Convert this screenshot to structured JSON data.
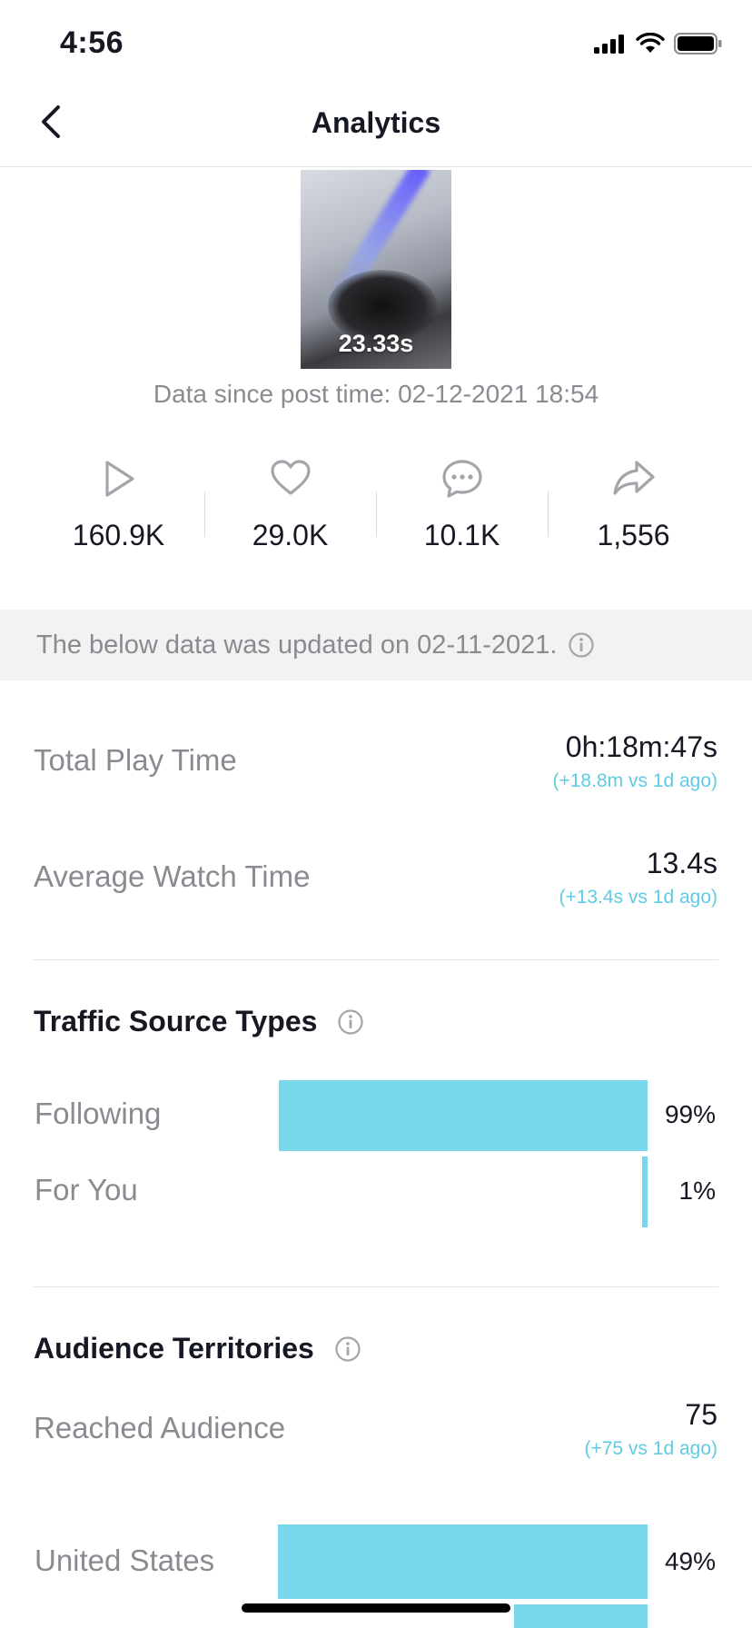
{
  "status_bar": {
    "time": "4:56"
  },
  "nav": {
    "title": "Analytics"
  },
  "video": {
    "duration": "23.33s",
    "since_text": "Data since post time: 02-12-2021 18:54"
  },
  "metrics": [
    {
      "icon": "play-icon",
      "value": "160.9K"
    },
    {
      "icon": "heart-icon",
      "value": "29.0K"
    },
    {
      "icon": "comment-icon",
      "value": "10.1K"
    },
    {
      "icon": "share-icon",
      "value": "1,556"
    }
  ],
  "banner": {
    "text": "The below data was updated on 02-11-2021."
  },
  "stats": {
    "total_play_time": {
      "label": "Total Play Time",
      "value": "0h:18m:47s",
      "delta": "(+18.8m vs 1d ago)"
    },
    "average_watch_time": {
      "label": "Average Watch Time",
      "value": "13.4s",
      "delta": "(+13.4s vs 1d ago)"
    }
  },
  "traffic": {
    "title": "Traffic Source Types",
    "items": [
      {
        "label": "Following",
        "percent_text": "99%",
        "fraction": 0.99
      },
      {
        "label": "For You",
        "percent_text": "1%",
        "fraction": 0.01
      }
    ]
  },
  "audience": {
    "title": "Audience Territories",
    "reached_label": "Reached Audience",
    "reached_value": "75",
    "reached_delta": "(+75 vs 1d ago)",
    "territories": [
      {
        "label": "United States",
        "percent_text": "49%",
        "fraction": 0.49
      }
    ]
  },
  "colors": {
    "accent": "#77d8ec",
    "delta_text": "#5fcbe3",
    "muted_text": "#8a8b91"
  }
}
